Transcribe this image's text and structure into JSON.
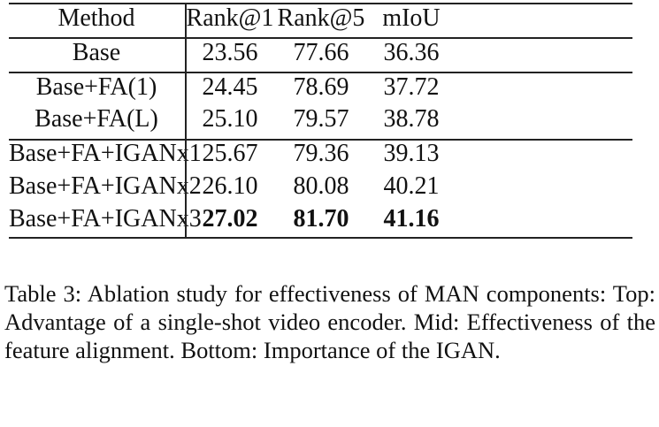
{
  "table": {
    "columns": [
      "Method",
      "Rank@1",
      "Rank@5",
      "mIoU"
    ],
    "groups": [
      [
        [
          "Base",
          "23.56",
          "77.66",
          "36.36"
        ]
      ],
      [
        [
          "Base+FA(1)",
          "24.45",
          "78.69",
          "37.72"
        ],
        [
          "Base+FA(L)",
          "25.10",
          "79.57",
          "38.78"
        ]
      ],
      [
        [
          "Base+FA+IGANx1",
          "25.67",
          "79.36",
          "39.13"
        ],
        [
          "Base+FA+IGANx2",
          "26.10",
          "80.08",
          "40.21"
        ],
        [
          "Base+FA+IGANx3",
          "27.02",
          "81.70",
          "41.16"
        ]
      ]
    ],
    "bold_row": "Base+FA+IGANx3"
  },
  "caption": "Table 3: Ablation study for effectiveness of MAN components: Top: Advantage of a single-shot video encoder. Mid: Effectiveness of the feature alignment. Bottom: Importance of the IGAN."
}
